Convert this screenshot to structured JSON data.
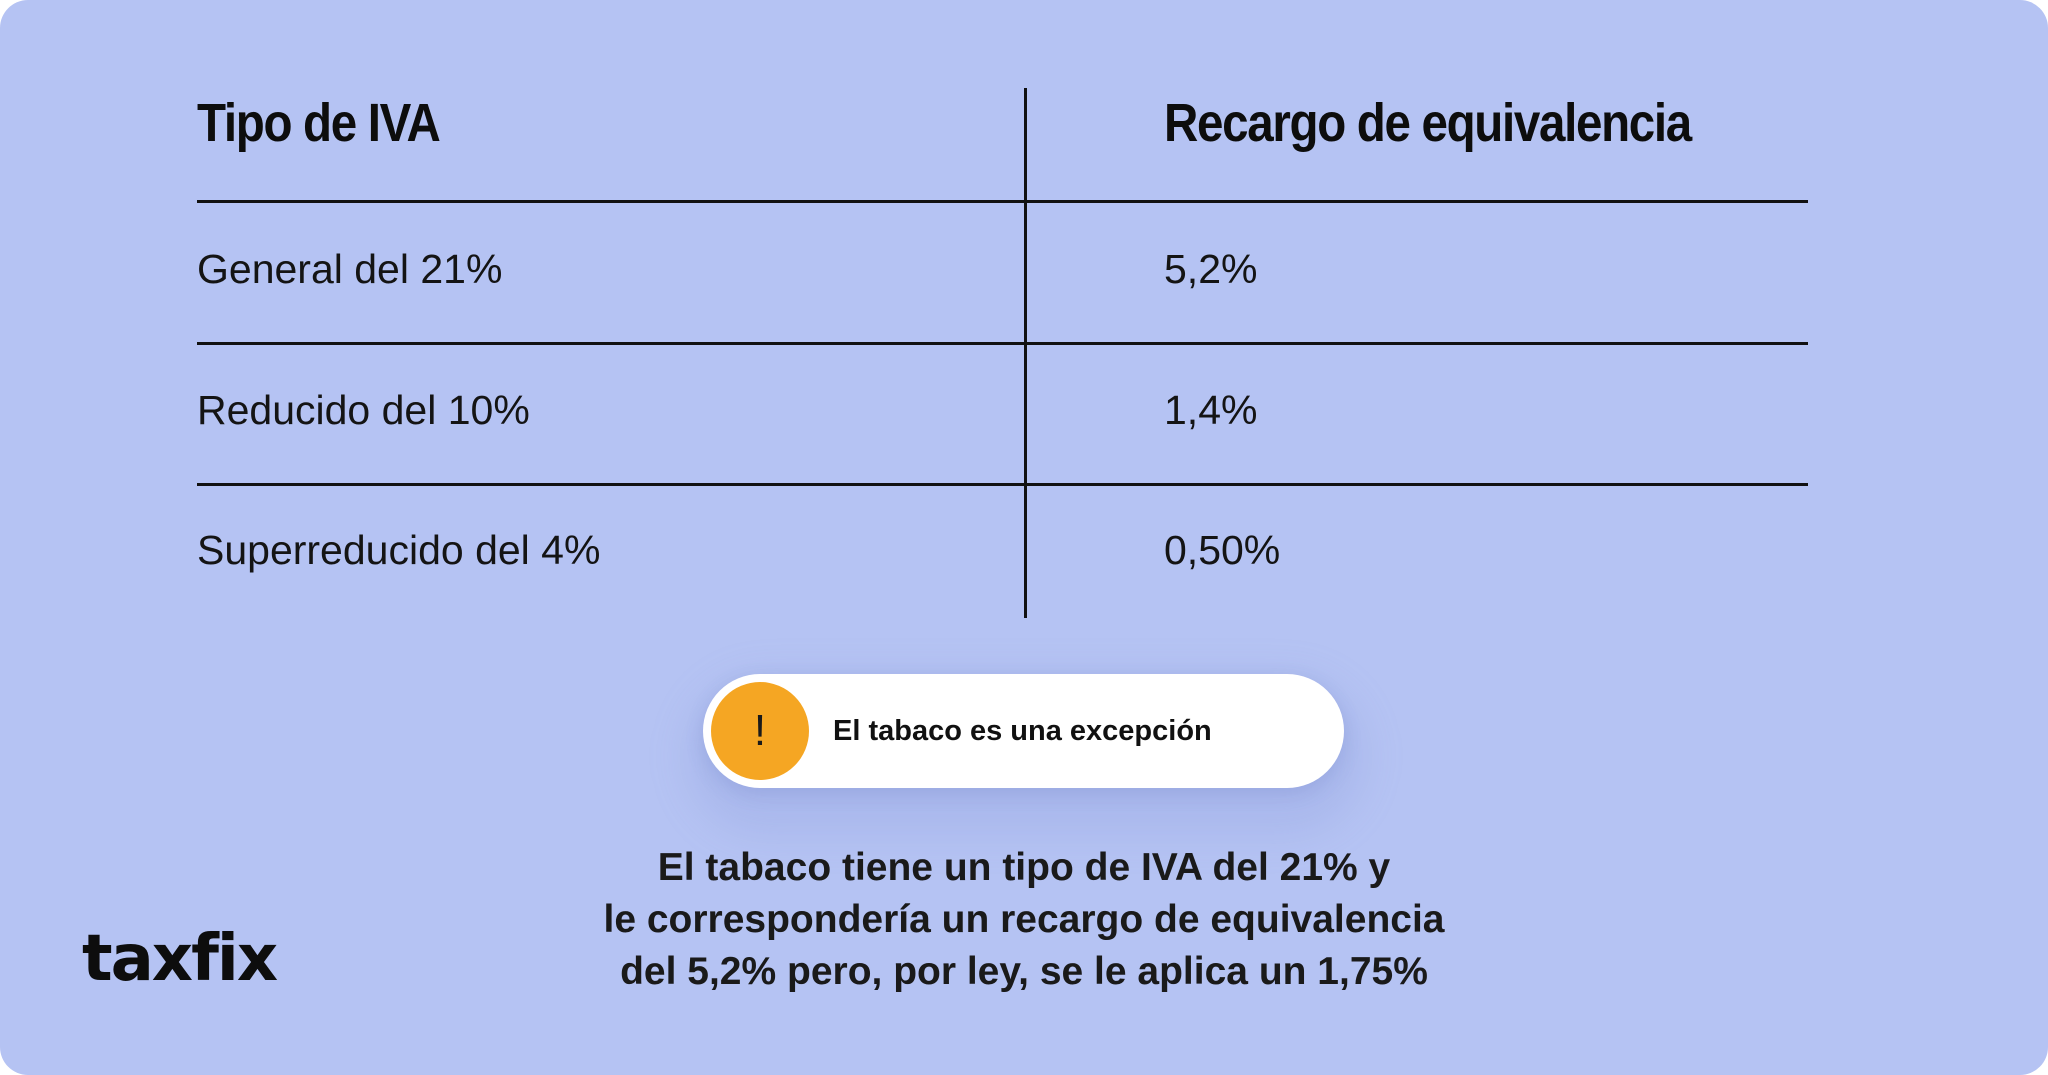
{
  "table": {
    "headers": [
      "Tipo de IVA",
      "Recargo de equivalencia"
    ],
    "rows": [
      {
        "tipo": "General del 21%",
        "recargo": "5,2%"
      },
      {
        "tipo": "Reducido del 10%",
        "recargo": "1,4%"
      },
      {
        "tipo": "Superreducido del 4%",
        "recargo": "0,50%"
      }
    ]
  },
  "callout": {
    "icon": "exclamation-icon",
    "glyph": "!",
    "label": "El tabaco es una excepción",
    "accent_color": "#f5a623"
  },
  "note": {
    "lines": [
      "El tabaco tiene un tipo de IVA del 21% y",
      "le correspondería un recargo de equivalencia",
      "del 5,2% pero, por ley, se le aplica un 1,75%"
    ]
  },
  "brand": {
    "logo_text": "taxfix"
  },
  "colors": {
    "background": "#b5c3f3",
    "ink": "#111111"
  }
}
